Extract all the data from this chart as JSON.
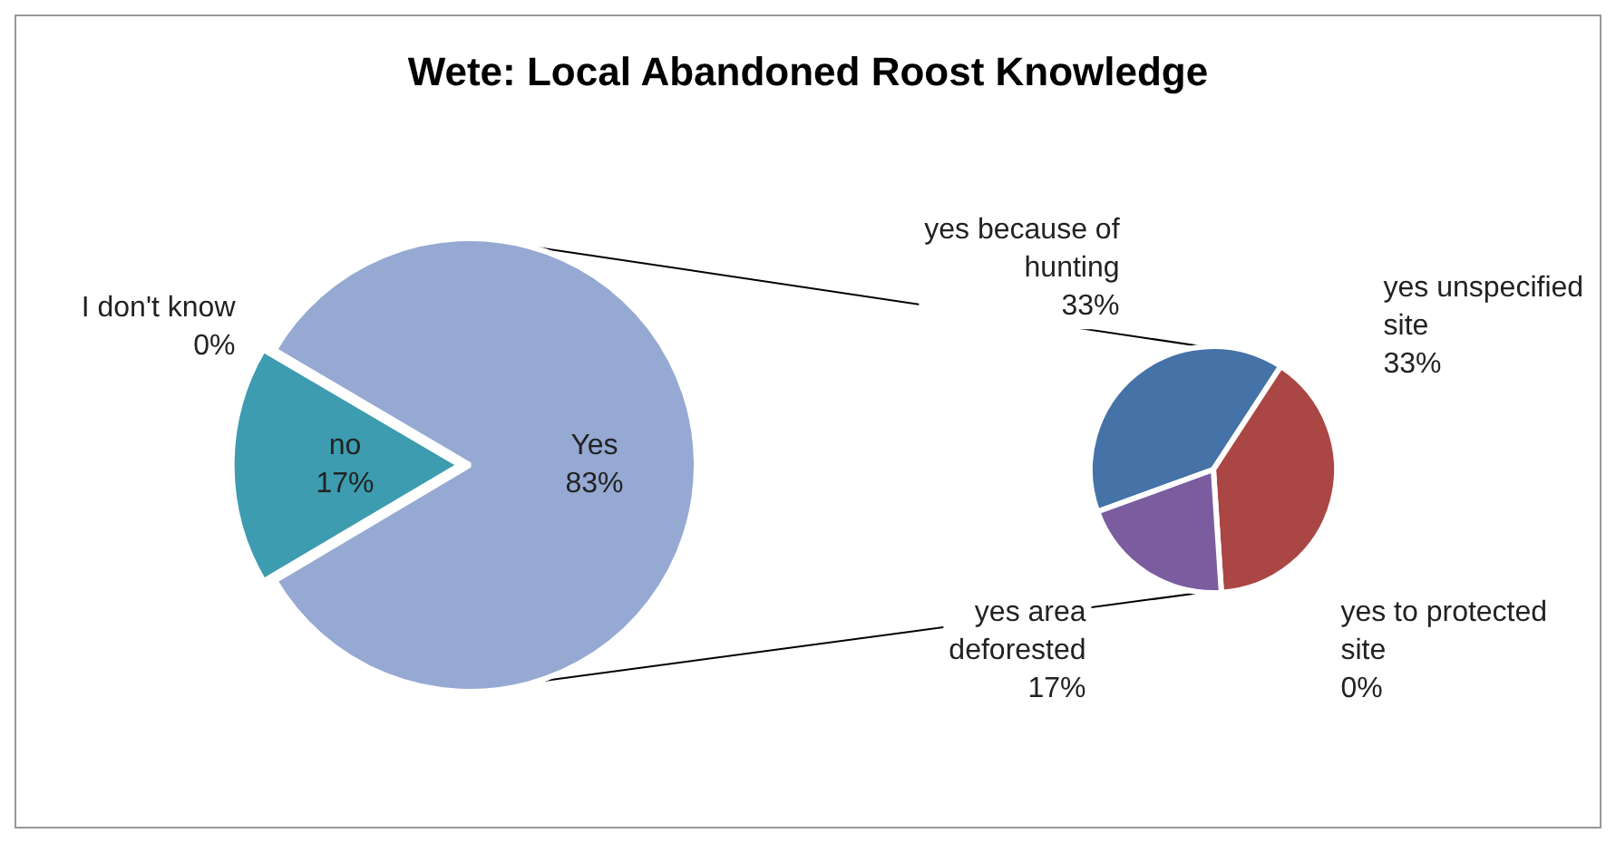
{
  "chart_data": [
    {
      "type": "pie",
      "title": "Wete: Local Abandoned Roost Knowledge",
      "categories": [
        "Yes",
        "no",
        "I don't know"
      ],
      "values": [
        83,
        17,
        0
      ],
      "value_labels": [
        "83%",
        "17%",
        "0%"
      ],
      "colors": [
        "#95a9d2",
        "#3d9caf",
        "#aa4643"
      ]
    },
    {
      "type": "pie",
      "categories": [
        "yes because of hunting",
        "yes unspecified site",
        "yes to protected site",
        "yes area deforested"
      ],
      "values": [
        33,
        33,
        0,
        17
      ],
      "value_labels": [
        "33%",
        "33%",
        "0%",
        "17%"
      ],
      "colors": [
        "#4572a7",
        "#aa4643",
        "#89a54e",
        "#7b5c9f"
      ]
    }
  ]
}
